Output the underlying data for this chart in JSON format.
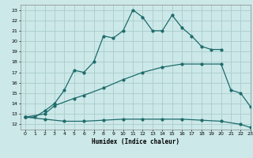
{
  "xlabel": "Humidex (Indice chaleur)",
  "background_color": "#cce8e8",
  "grid_color": "#aacccc",
  "line_color": "#1e6b6b",
  "xlim": [
    -0.5,
    23
  ],
  "ylim": [
    11.5,
    23.5
  ],
  "xticks": [
    0,
    1,
    2,
    3,
    4,
    5,
    6,
    7,
    8,
    9,
    10,
    11,
    12,
    13,
    14,
    15,
    16,
    17,
    18,
    19,
    20,
    21,
    22,
    23
  ],
  "yticks": [
    12,
    13,
    14,
    15,
    16,
    17,
    18,
    19,
    20,
    21,
    22,
    23
  ],
  "line1_x": [
    0,
    1,
    2,
    3,
    4,
    5,
    6,
    7,
    8,
    9,
    10,
    11,
    12,
    13,
    14,
    15,
    16,
    17,
    18,
    19,
    20
  ],
  "line1_y": [
    12.7,
    12.7,
    13.3,
    14.0,
    15.3,
    17.2,
    17.0,
    18.0,
    20.5,
    20.3,
    21.0,
    23.0,
    22.3,
    21.0,
    21.0,
    22.5,
    21.3,
    20.5,
    19.5,
    19.2,
    19.2
  ],
  "line2_x": [
    0,
    2,
    3,
    5,
    6,
    8,
    10,
    12,
    14,
    16,
    18,
    20,
    21,
    22,
    23
  ],
  "line2_y": [
    12.7,
    13.0,
    13.8,
    14.5,
    14.8,
    15.5,
    16.3,
    17.0,
    17.5,
    17.8,
    17.8,
    17.8,
    15.3,
    15.0,
    13.7
  ],
  "line3_x": [
    0,
    2,
    4,
    6,
    8,
    10,
    12,
    14,
    16,
    18,
    20,
    22,
    23
  ],
  "line3_y": [
    12.7,
    12.5,
    12.3,
    12.3,
    12.4,
    12.5,
    12.5,
    12.5,
    12.5,
    12.4,
    12.3,
    12.0,
    11.7
  ]
}
